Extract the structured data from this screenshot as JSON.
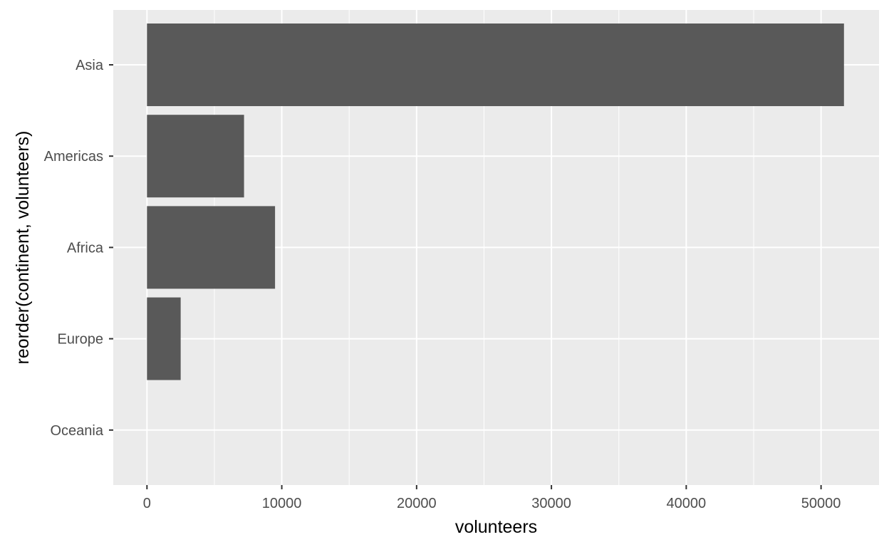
{
  "chart_data": {
    "type": "bar",
    "orientation": "horizontal",
    "categories": [
      "Asia",
      "Americas",
      "Africa",
      "Europe",
      "Oceania"
    ],
    "values": [
      51700,
      7200,
      9500,
      2500,
      0
    ],
    "xlabel": "volunteers",
    "ylabel": "reorder(continent, volunteers)",
    "xlim": [
      -2500,
      54300
    ],
    "xticks": [
      0,
      10000,
      20000,
      30000,
      40000,
      50000
    ],
    "xtick_labels": [
      "0",
      "10000",
      "20000",
      "30000",
      "40000",
      "50000"
    ],
    "grid": true,
    "legend": "none",
    "colors": {
      "panel_background": "#ebebeb",
      "grid": "#ffffff",
      "bar": "#595959",
      "tick": "#333333",
      "tick_text": "#4d4d4d",
      "title_text": "#000000"
    }
  }
}
